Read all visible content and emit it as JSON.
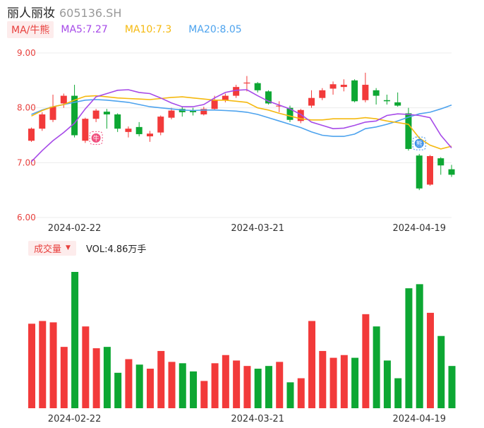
{
  "header": {
    "name": "丽人丽妆",
    "code": "605136.SH"
  },
  "legend": {
    "indicator": "MA/牛熊",
    "ma5": "MA5:7.27",
    "ma10": "MA10:7.3",
    "ma20": "MA20:8.05",
    "ma5_color": "#a64ae8",
    "ma10_color": "#f5b90f",
    "ma20_color": "#4da3ee"
  },
  "volume": {
    "selector": "成交量",
    "value": "VOL:4.86万手"
  },
  "colors": {
    "up": "#f23a3a",
    "down": "#0da733"
  },
  "chart_data": {
    "type": "candlestick",
    "y_ticks": [
      "9.00",
      "8.00",
      "7.00",
      "6.00"
    ],
    "ylim": [
      6.0,
      9.0
    ],
    "x_ticks": [
      {
        "label": "2024-02-22",
        "index": 4
      },
      {
        "label": "2024-03-21",
        "index": 21
      },
      {
        "label": "2024-04-19",
        "index": 36
      }
    ],
    "markers": [
      {
        "label": "牛",
        "index": 6,
        "value": 7.45
      },
      {
        "label": "熊",
        "index": 36,
        "value": 7.35
      }
    ],
    "candles": [
      [
        7.4,
        7.62,
        7.38,
        7.64
      ],
      [
        7.62,
        7.88,
        7.58,
        7.92
      ],
      [
        7.78,
        8.02,
        7.74,
        8.24
      ],
      [
        8.08,
        8.22,
        8.0,
        8.26
      ],
      [
        8.22,
        7.5,
        7.46,
        8.42
      ],
      [
        7.4,
        7.8,
        7.36,
        7.82
      ],
      [
        7.8,
        7.95,
        7.74,
        7.98
      ],
      [
        7.93,
        7.88,
        7.62,
        7.98
      ],
      [
        7.88,
        7.62,
        7.56,
        7.9
      ],
      [
        7.56,
        7.62,
        7.46,
        7.66
      ],
      [
        7.65,
        7.52,
        7.48,
        7.74
      ],
      [
        7.48,
        7.53,
        7.38,
        7.58
      ],
      [
        7.55,
        7.84,
        7.5,
        7.86
      ],
      [
        7.82,
        7.95,
        7.79,
        8.0
      ],
      [
        7.98,
        7.92,
        7.84,
        8.02
      ],
      [
        7.96,
        7.92,
        7.86,
        8.0
      ],
      [
        7.88,
        7.98,
        7.86,
        8.02
      ],
      [
        7.98,
        8.14,
        7.96,
        8.22
      ],
      [
        8.14,
        8.22,
        8.1,
        8.26
      ],
      [
        8.22,
        8.38,
        8.18,
        8.42
      ],
      [
        8.45,
        8.46,
        8.3,
        8.58
      ],
      [
        8.45,
        8.32,
        8.28,
        8.47
      ],
      [
        8.3,
        8.08,
        8.06,
        8.32
      ],
      [
        8.03,
        8.04,
        7.92,
        8.12
      ],
      [
        8.0,
        7.78,
        7.74,
        8.04
      ],
      [
        7.76,
        7.96,
        7.72,
        7.98
      ],
      [
        8.04,
        8.18,
        8.0,
        8.32
      ],
      [
        8.18,
        8.32,
        8.14,
        8.36
      ],
      [
        8.35,
        8.43,
        8.24,
        8.48
      ],
      [
        8.38,
        8.42,
        8.3,
        8.52
      ],
      [
        8.5,
        8.12,
        8.1,
        8.52
      ],
      [
        8.14,
        8.42,
        8.1,
        8.64
      ],
      [
        8.32,
        8.22,
        8.06,
        8.36
      ],
      [
        8.14,
        8.12,
        8.06,
        8.24
      ],
      [
        8.1,
        8.04,
        8.02,
        8.28
      ],
      [
        7.9,
        7.25,
        7.22,
        8.0
      ],
      [
        7.13,
        6.53,
        6.5,
        7.16
      ],
      [
        6.6,
        7.12,
        6.58,
        7.14
      ],
      [
        7.08,
        6.95,
        6.78,
        7.1
      ],
      [
        6.88,
        6.78,
        6.74,
        6.96
      ]
    ],
    "ma5": [
      7.02,
      7.22,
      7.4,
      7.55,
      7.72,
      7.98,
      8.2,
      8.26,
      8.32,
      8.33,
      8.28,
      8.26,
      8.18,
      8.09,
      8.02,
      8.02,
      8.06,
      8.18,
      8.28,
      8.32,
      8.33,
      8.22,
      8.12,
      8.05,
      7.98,
      7.88,
      7.74,
      7.68,
      7.62,
      7.63,
      7.68,
      7.74,
      7.76,
      7.86,
      7.89,
      7.88,
      7.86,
      7.82,
      7.5,
      7.27
    ],
    "ma10": [
      7.85,
      7.95,
      8.02,
      8.06,
      8.14,
      8.21,
      8.22,
      8.2,
      8.18,
      8.17,
      8.16,
      8.15,
      8.17,
      8.19,
      8.2,
      8.18,
      8.16,
      8.14,
      8.14,
      8.12,
      8.1,
      8.0,
      7.96,
      7.9,
      7.85,
      7.8,
      7.78,
      7.78,
      7.8,
      7.8,
      7.8,
      7.82,
      7.8,
      7.76,
      7.73,
      7.7,
      7.45,
      7.32,
      7.25,
      7.3
    ],
    "ma20": [
      7.88,
      7.96,
      8.02,
      8.06,
      8.1,
      8.14,
      8.15,
      8.14,
      8.12,
      8.1,
      8.06,
      8.02,
      8.0,
      7.98,
      7.96,
      7.95,
      7.96,
      7.96,
      7.95,
      7.94,
      7.92,
      7.88,
      7.82,
      7.76,
      7.7,
      7.64,
      7.56,
      7.5,
      7.48,
      7.48,
      7.52,
      7.62,
      7.65,
      7.7,
      7.76,
      7.83,
      7.89,
      7.92,
      7.98,
      8.05
    ],
    "volumes": [
      0.62,
      0.64,
      0.63,
      0.45,
      1.0,
      0.6,
      0.44,
      0.45,
      0.26,
      0.36,
      0.32,
      0.29,
      0.42,
      0.34,
      0.33,
      0.27,
      0.2,
      0.33,
      0.39,
      0.35,
      0.31,
      0.29,
      0.31,
      0.34,
      0.19,
      0.22,
      0.64,
      0.42,
      0.37,
      0.39,
      0.37,
      0.69,
      0.6,
      0.35,
      0.22,
      0.88,
      0.91,
      0.7,
      0.53,
      0.31
    ]
  }
}
